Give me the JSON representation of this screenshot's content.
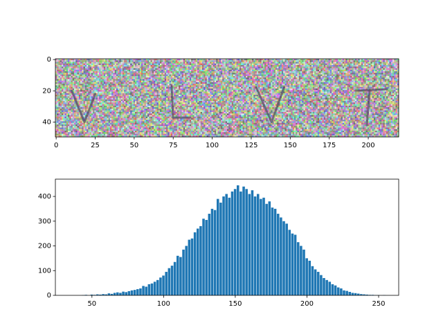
{
  "chart_data": [
    {
      "type": "image",
      "xlim": [
        -0.5,
        219.5
      ],
      "ylim": [
        49.5,
        -0.5
      ],
      "xticks": [
        0,
        25,
        50,
        75,
        100,
        125,
        150,
        175,
        200
      ],
      "yticks": [
        0,
        20,
        40
      ]
    },
    {
      "type": "histogram",
      "color": "#1f77b4",
      "bins": [
        35,
        37,
        39,
        41,
        43,
        45,
        47,
        49,
        51,
        53,
        55,
        57,
        59,
        61,
        63,
        65,
        67,
        69,
        71,
        73,
        75,
        77,
        79,
        81,
        83,
        85,
        87,
        89,
        91,
        93,
        95,
        97,
        99,
        101,
        103,
        105,
        107,
        109,
        111,
        113,
        115,
        117,
        119,
        121,
        123,
        125,
        127,
        129,
        131,
        133,
        135,
        137,
        139,
        141,
        143,
        145,
        147,
        149,
        151,
        153,
        155,
        157,
        159,
        161,
        163,
        165,
        167,
        169,
        171,
        173,
        175,
        177,
        179,
        181,
        183,
        185,
        187,
        189,
        191,
        193,
        195,
        197,
        199,
        201,
        203,
        205,
        207,
        209,
        211,
        213,
        215,
        217,
        219,
        221,
        223,
        225,
        227,
        229,
        231,
        233,
        235,
        237,
        239,
        241,
        243,
        245,
        247,
        249,
        251,
        253,
        255
      ],
      "values": [
        0,
        0,
        0,
        0,
        1,
        2,
        0,
        3,
        2,
        4,
        3,
        5,
        4,
        8,
        6,
        10,
        12,
        10,
        15,
        13,
        17,
        20,
        22,
        25,
        28,
        38,
        35,
        45,
        48,
        55,
        62,
        72,
        80,
        95,
        110,
        120,
        135,
        160,
        155,
        185,
        200,
        225,
        230,
        255,
        270,
        280,
        310,
        305,
        330,
        350,
        345,
        390,
        375,
        400,
        410,
        395,
        420,
        430,
        445,
        420,
        440,
        430,
        410,
        425,
        400,
        410,
        390,
        395,
        370,
        380,
        355,
        350,
        330,
        315,
        300,
        290,
        265,
        250,
        245,
        215,
        200,
        185,
        150,
        140,
        118,
        105,
        95,
        82,
        70,
        62,
        55,
        45,
        40,
        32,
        28,
        20,
        18,
        14,
        10,
        9,
        7,
        5,
        4,
        3,
        2,
        2,
        1,
        1,
        0,
        1
      ],
      "xlim": [
        24.5,
        264
      ],
      "xticks": [
        50,
        100,
        150,
        200,
        250
      ],
      "ylim": [
        0,
        470
      ],
      "yticks": [
        0,
        100,
        200,
        300,
        400
      ]
    }
  ]
}
